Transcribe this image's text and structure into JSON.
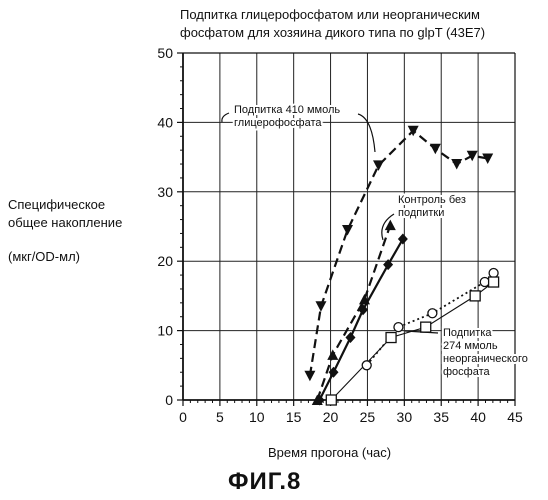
{
  "header": {
    "title_line1": "Подпитка глицерофосфатом или неорганическим",
    "title_line2": "фосфатом для хозяина дикого типа по glpT (43E7)"
  },
  "ylabel": {
    "line1": "Специфическое",
    "line2": "общее накопление",
    "units": "(мкг/OD-мл)"
  },
  "xlabel": "Время прогона (час)",
  "figure_label": "ФИГ.8",
  "chart_data": {
    "type": "line",
    "xlim": [
      0,
      45
    ],
    "ylim": [
      0,
      50
    ],
    "x_ticks": [
      "0",
      "5",
      "10",
      "15",
      "20",
      "25",
      "30",
      "35",
      "40",
      "45"
    ],
    "y_ticks": [
      "0",
      "10",
      "20",
      "30",
      "40",
      "50"
    ],
    "grid": true,
    "series": [
      {
        "name": "Подпитка 410 ммоль глицерофосфата",
        "style": "dashed",
        "marker": "triangle-down",
        "color": "#111111",
        "points": [
          [
            17.2,
            3.5
          ],
          [
            18.7,
            13.5
          ],
          [
            22.3,
            24.5
          ],
          [
            26.5,
            33.8
          ],
          [
            31.2,
            38.8
          ],
          [
            34.2,
            36.2
          ],
          [
            37.1,
            34
          ],
          [
            39.2,
            35.2
          ],
          [
            41.3,
            34.8
          ]
        ]
      },
      {
        "name": "",
        "style": "dashed",
        "marker": "triangle-up",
        "color": "#111111",
        "points": [
          [
            18.2,
            0
          ],
          [
            20.3,
            6.5
          ],
          [
            24.6,
            14.5
          ],
          [
            28.1,
            25.2
          ]
        ]
      },
      {
        "name": "Контроль без подпитки",
        "style": "solid-bold",
        "marker": "diamond",
        "color": "#111111",
        "points": [
          [
            18.5,
            0
          ],
          [
            20.4,
            4
          ],
          [
            22.7,
            9
          ],
          [
            24.4,
            13
          ],
          [
            27.8,
            19.5
          ],
          [
            29.8,
            23.2
          ]
        ]
      },
      {
        "name": "Подпитка 274 ммоль неорганического фосфата",
        "style": "dotted",
        "marker": "circle",
        "color": "#111111",
        "points": [
          [
            24.9,
            5
          ],
          [
            29.2,
            10.5
          ],
          [
            33.8,
            12.5
          ],
          [
            40.9,
            17
          ],
          [
            42.1,
            18.3
          ]
        ]
      },
      {
        "name": "",
        "style": "solid-thin",
        "marker": "square",
        "color": "#111111",
        "points": [
          [
            20.1,
            0
          ],
          [
            28.2,
            9
          ],
          [
            32.9,
            10.5
          ],
          [
            39.6,
            15
          ],
          [
            42.1,
            17
          ]
        ]
      }
    ],
    "annotations": {
      "glycerophosphate": [
        "Подпитка 410 ммоль",
        "глицерофосфата"
      ],
      "control": [
        "Контроль без",
        "подпитки"
      ],
      "phosphate": [
        "Подпитка",
        "274 ммоль",
        "неорганического",
        "фосфата"
      ]
    }
  }
}
